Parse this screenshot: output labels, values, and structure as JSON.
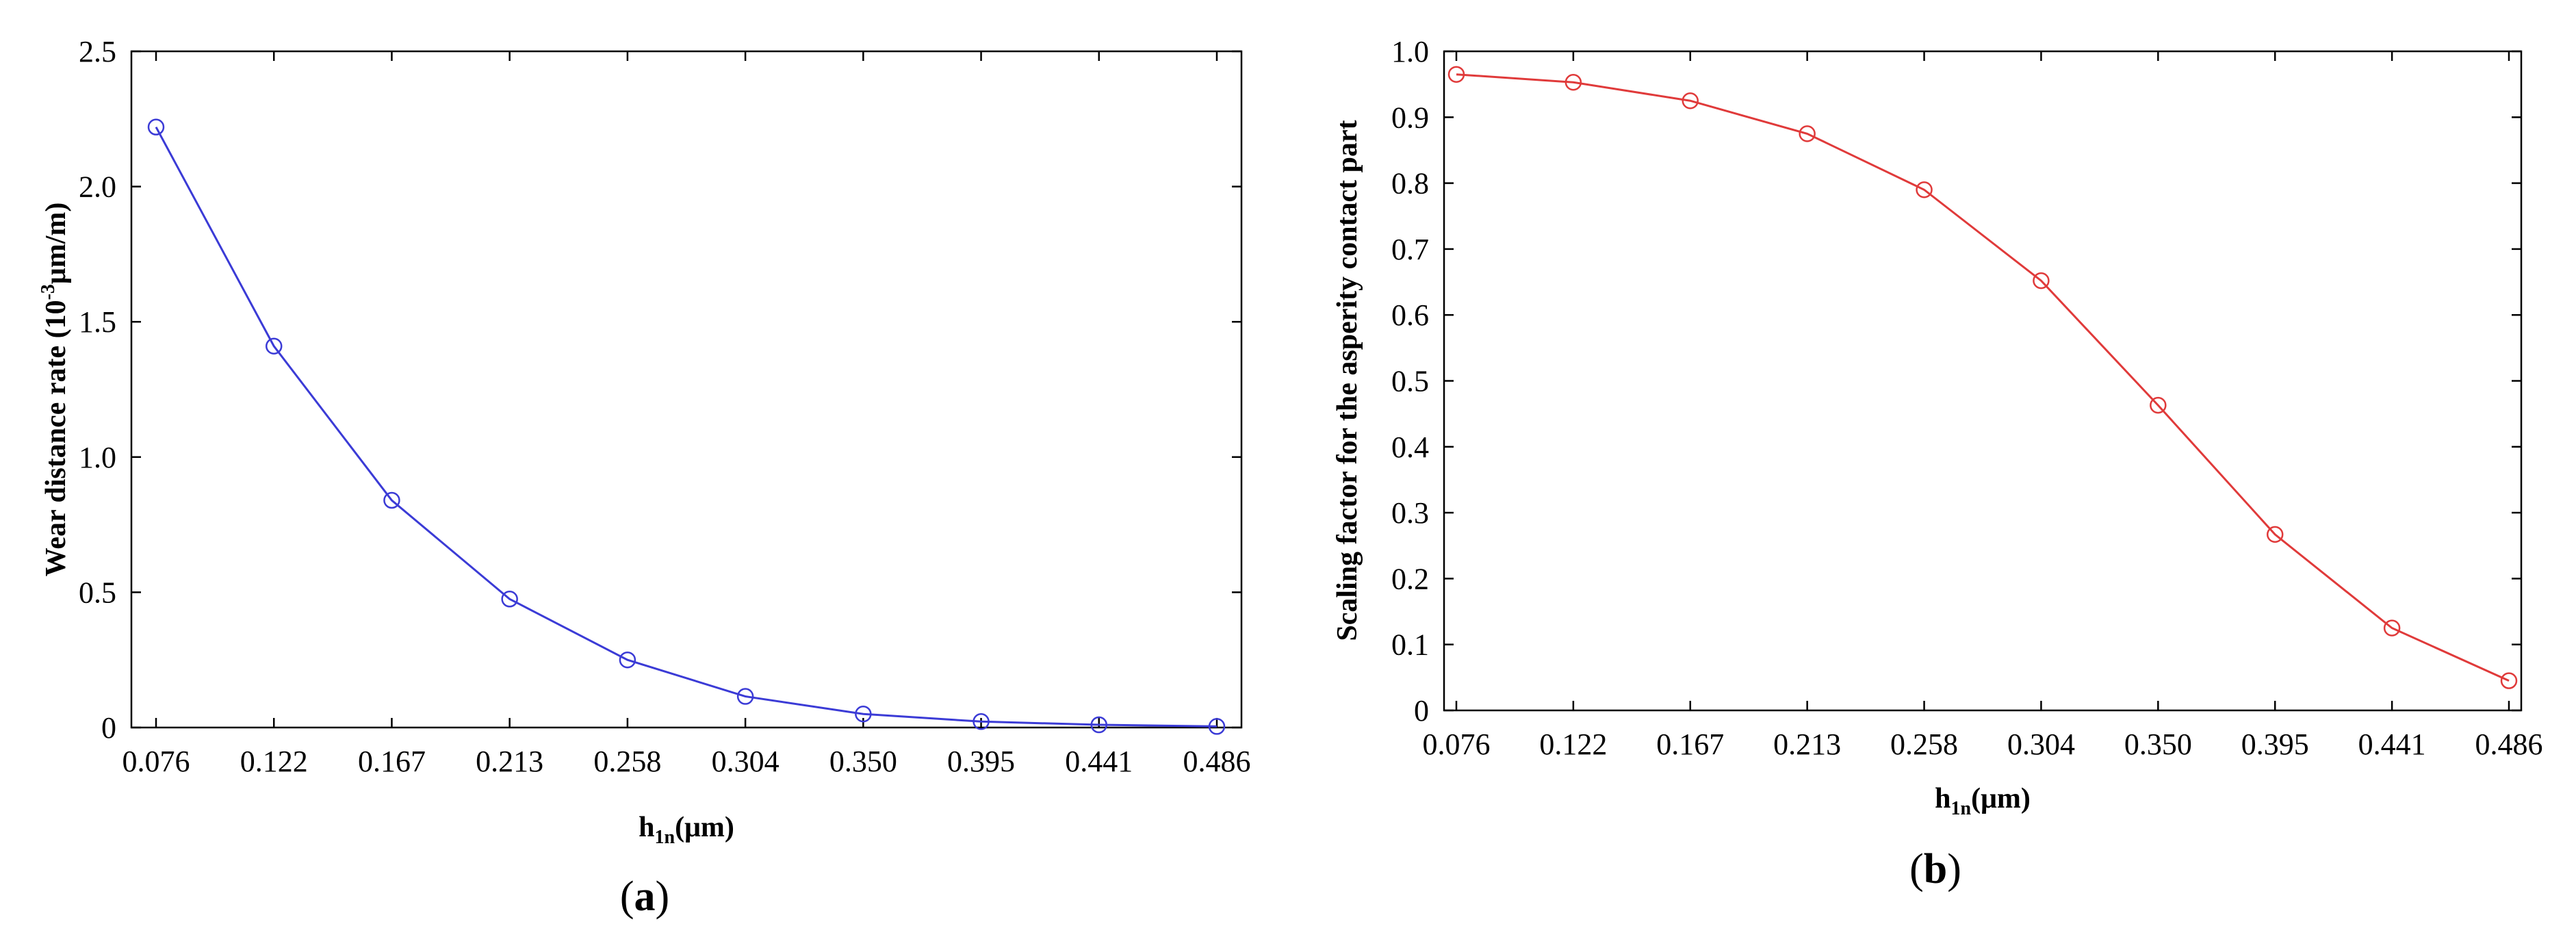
{
  "chart_data": [
    {
      "type": "line",
      "panel_label": {
        "open": "(",
        "letter": "a",
        "close": ")"
      },
      "xlabel": {
        "base": "h",
        "sub": "1n",
        "tail": "(μm)"
      },
      "ylabel": {
        "pre": "Wear distance rate (10",
        "sup": "-3",
        "post": "μm/m)"
      },
      "categories": [
        "0.076",
        "0.122",
        "0.167",
        "0.213",
        "0.258",
        "0.304",
        "0.350",
        "0.395",
        "0.441",
        "0.486"
      ],
      "yticks": [
        "0",
        "0.5",
        "1.0",
        "1.5",
        "2.0",
        "2.5"
      ],
      "ylim": [
        0,
        2.5
      ],
      "series": [
        {
          "values": [
            2.22,
            1.41,
            0.84,
            0.475,
            0.25,
            0.115,
            0.05,
            0.022,
            0.01,
            0.004
          ]
        }
      ],
      "color": "#3b3bd6",
      "marker": "circle",
      "grid": false
    },
    {
      "type": "line",
      "panel_label": {
        "open": "(",
        "letter": "b",
        "close": ")"
      },
      "xlabel": {
        "base": "h",
        "sub": "1n",
        "tail": "(μm)"
      },
      "ylabel": {
        "pre": "Scaling factor for the asperity contact part",
        "sup": "",
        "post": ""
      },
      "categories": [
        "0.076",
        "0.122",
        "0.167",
        "0.213",
        "0.258",
        "0.304",
        "0.350",
        "0.395",
        "0.441",
        "0.486"
      ],
      "yticks": [
        "0",
        "0.1",
        "0.2",
        "0.3",
        "0.4",
        "0.5",
        "0.6",
        "0.7",
        "0.8",
        "0.9",
        "1.0"
      ],
      "ylim": [
        0,
        1.0
      ],
      "series": [
        {
          "values": [
            0.965,
            0.953,
            0.925,
            0.875,
            0.79,
            0.652,
            0.463,
            0.267,
            0.125,
            0.045
          ]
        }
      ],
      "color": "#e03a3a",
      "marker": "circle",
      "grid": false
    }
  ]
}
